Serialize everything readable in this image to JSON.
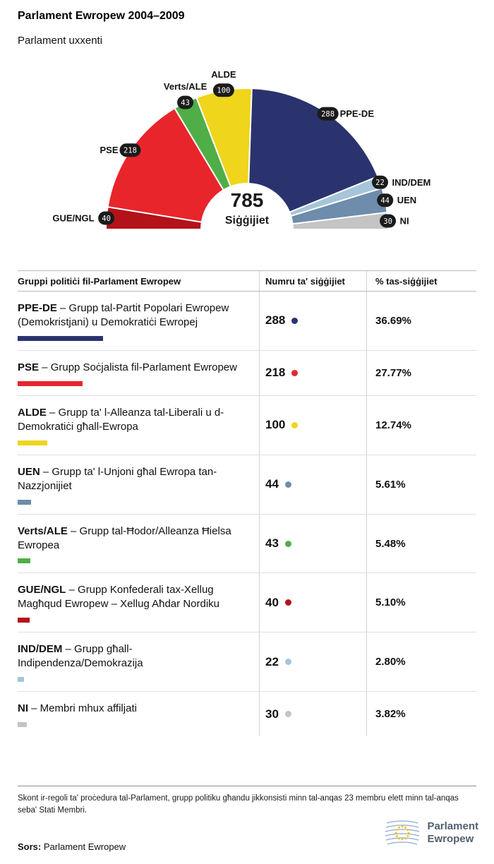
{
  "header": {
    "title": "Parlament Ewropew 2004–2009",
    "subtitle": "Parlament uxxenti"
  },
  "chart_data": {
    "type": "hemicycle",
    "title": "Parlament Ewropew 2004–2009",
    "total_seats": 785,
    "center": {
      "value": "785",
      "label": "Siġġijiet"
    },
    "hemicycle_order": [
      "GUE/NGL",
      "PSE",
      "Verts/ALE",
      "ALDE",
      "PPE-DE",
      "IND/DEM",
      "UEN",
      "NI"
    ],
    "parties": [
      {
        "abbr": "PPE-DE",
        "name": "Grupp tal-Partit Popolari Ewropew (Demokristjani) u Demokratiċi Ewropej",
        "seats": 288,
        "percent": 36.69,
        "percent_label": "36.69%",
        "color": "#2a336e"
      },
      {
        "abbr": "PSE",
        "name": "Grupp Soċjalista fil-Parlament Ewropew",
        "seats": 218,
        "percent": 27.77,
        "percent_label": "27.77%",
        "color": "#e8252b"
      },
      {
        "abbr": "ALDE",
        "name": "Grupp ta' l-Alleanza tal-Liberali u d-Demokratiċi għall-Ewropa",
        "seats": 100,
        "percent": 12.74,
        "percent_label": "12.74%",
        "color": "#efd51c"
      },
      {
        "abbr": "UEN",
        "name": "Grupp ta' l-Unjoni għal Ewropa tan-Nazzjonijiet",
        "seats": 44,
        "percent": 5.61,
        "percent_label": "5.61%",
        "color": "#6e8cab"
      },
      {
        "abbr": "Verts/ALE",
        "name": "Grupp tal-Ħodor/Alleanza Ħielsa Ewropea",
        "seats": 43,
        "percent": 5.48,
        "percent_label": "5.48%",
        "color": "#4fae48"
      },
      {
        "abbr": "GUE/NGL",
        "name": "Grupp Konfederali tax-Xellug Magħqud Ewropew – Xellug Aħdar Nordiku",
        "seats": 40,
        "percent": 5.1,
        "percent_label": "5.10%",
        "color": "#b3121a"
      },
      {
        "abbr": "IND/DEM",
        "name": "Grupp għall-Indipendenza/Demokrazija",
        "seats": 22,
        "percent": 2.8,
        "percent_label": "2.80%",
        "color": "#a6c5da"
      },
      {
        "abbr": "NI",
        "name": "Membri mhux affiljati",
        "seats": 30,
        "percent": 3.82,
        "percent_label": "3.82%",
        "color": "#c4c4c4"
      }
    ]
  },
  "table": {
    "headers": [
      "Gruppi politiċi fil-Parlament Ewropew",
      "Numru ta' siġġijiet",
      "% tas-siġġijiet"
    ],
    "separator": " – "
  },
  "footer": {
    "note": "Skont ir-regoli ta' proċedura tal-Parlament, grupp politiku għandu jikkonsisti minn tal-anqas 23 membru elett minn tal-anqas seba' Stati Membri.",
    "source_label": "Sors:",
    "source": " Parlament Ewropew",
    "logo": {
      "line1": "Parlament",
      "line2": "Ewropew"
    }
  }
}
